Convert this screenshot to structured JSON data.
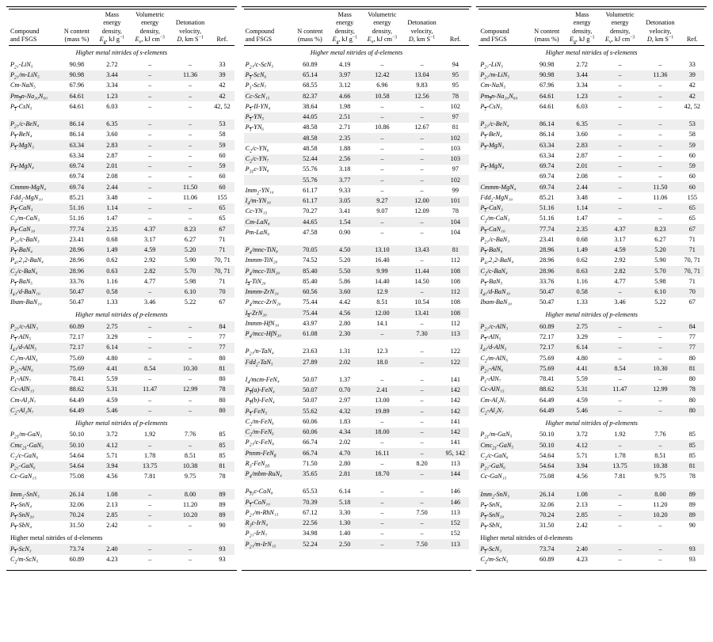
{
  "header": {
    "c1": "Compound and FSGS",
    "c2": "N content (mass %)",
    "c3": "Mass energy density, E_g, kJ g⁻¹",
    "c4": "Volumetric energy density, E_v, kJ cm⁻³",
    "c5": "Detonation velocity, D, km S⁻¹",
    "c6": "Ref."
  },
  "sections": {
    "s_elements": "Higher metal nitrides of s-elements",
    "p_elements": "Higher metal nitrides of p-elements",
    "d_elements": "Higher metal nitrides of d-elements"
  },
  "style": {
    "row_shade": "#eeeeee",
    "fontsize_pt": 8.2,
    "font_family": "Times New Roman"
  },
  "col1": [
    {
      "section": "s_elements"
    },
    {
      "f": "P2₁-LiN₅",
      "n": "90.98",
      "eg": "2.72",
      "ev": "–",
      "d": "–",
      "r": "33"
    },
    {
      "f": "P2₁/m-LiN₅",
      "n": "90.98",
      "eg": "3.44",
      "ev": "–",
      "d": "11.36",
      "r": "39",
      "shade": true
    },
    {
      "f": "Cm-NaN₅",
      "n": "67.96",
      "eg": "3.34",
      "ev": "–",
      "d": "–",
      "r": "42"
    },
    {
      "f": "Pm3̄n-Na₂₀N₆₀",
      "n": "64.61",
      "eg": "1.23",
      "ev": "–",
      "d": "–",
      "r": "42",
      "shade": true
    },
    {
      "f": "P1̄-CsN₅",
      "n": "64.61",
      "eg": "6.03",
      "ev": "–",
      "d": "–",
      "r": "42, 52"
    },
    {
      "spacer": true
    },
    {
      "f": "P2₁/c-BeN₄",
      "n": "86.14",
      "eg": "6.35",
      "ev": "–",
      "d": "–",
      "r": "53",
      "shade": true
    },
    {
      "f": "P1̄-BeN₄",
      "n": "86.14",
      "eg": "3.60",
      "ev": "–",
      "d": "–",
      "r": "58"
    },
    {
      "f": "P1̄-MgN₃",
      "n": "63.34",
      "eg": "2.83",
      "ev": "–",
      "d": "–",
      "r": "59",
      "shade": true
    },
    {
      "f": "",
      "n": "63.34",
      "eg": "2.87",
      "ev": "–",
      "d": "–",
      "r": "60"
    },
    {
      "f": "P1̄-MgN₄",
      "n": "69.74",
      "eg": "2.01",
      "ev": "–",
      "d": "–",
      "r": "59",
      "shade": true
    },
    {
      "f": "",
      "n": "69.74",
      "eg": "2.08",
      "ev": "–",
      "d": "–",
      "r": "60"
    },
    {
      "f": "Cmmm-MgN₄",
      "n": "69.74",
      "eg": "2.44",
      "ev": "–",
      "d": "11.50",
      "r": "60",
      "shade": true
    },
    {
      "f": "Fdd2-MgN₁₀",
      "n": "85.21",
      "eg": "3.48",
      "ev": "–",
      "d": "11.06",
      "r": "155"
    },
    {
      "f": "P1̄-CaN₃",
      "n": "51.16",
      "eg": "1.14",
      "ev": "–",
      "d": "–",
      "r": "65",
      "shade": true
    },
    {
      "f": "C2/m-CaN₃",
      "n": "51.16",
      "eg": "1.47",
      "ev": "–",
      "d": "–",
      "r": "65"
    },
    {
      "f": "P1̄-CaN₁₀",
      "n": "77.74",
      "eg": "2.35",
      "ev": "4.37",
      "d": "8.23",
      "r": "67",
      "shade": true
    },
    {
      "f": "P2₁/c-BaN₃",
      "n": "23.41",
      "eg": "0.68",
      "ev": "3.17",
      "d": "6.27",
      "r": "71"
    },
    {
      "f": "P1̄-BaN₄",
      "n": "28.96",
      "eg": "1.49",
      "ev": "4.59",
      "d": "5.20",
      "r": "71",
      "shade": true
    },
    {
      "f": "P4₁2₁2-BaN₄",
      "n": "28.96",
      "eg": "0.62",
      "ev": "2.92",
      "d": "5.90",
      "r": "70, 71"
    },
    {
      "f": "C2/c-BaN₄",
      "n": "28.96",
      "eg": "0.63",
      "ev": "2.82",
      "d": "5.70",
      "r": "70, 71",
      "shade": true
    },
    {
      "f": "P1̄-BaN₅",
      "n": "33.76",
      "eg": "1.16",
      "ev": "4.77",
      "d": "5.98",
      "r": "71"
    },
    {
      "f": "I4₁/d-BaN₁₀",
      "n": "50.47",
      "eg": "0.58",
      "ev": "–",
      "d": "6.10",
      "r": "70",
      "shade": true
    },
    {
      "f": "Ibam-BaN₁₀",
      "n": "50.47",
      "eg": "1.33",
      "ev": "3.46",
      "d": "5.22",
      "r": "67"
    },
    {
      "section": "p_elements"
    },
    {
      "f": "P2₁/c-AlN₃",
      "n": "60.89",
      "eg": "2.75",
      "ev": "–",
      "d": "–",
      "r": "84",
      "shade": true
    },
    {
      "f": "P1̄-AlN₅",
      "n": "72.17",
      "eg": "3.29",
      "ev": "–",
      "d": "–",
      "r": "77"
    },
    {
      "f": "I4₁/d-AlN₅",
      "n": "72.17",
      "eg": "6.14",
      "ev": "–",
      "d": "–",
      "r": "77",
      "shade": true
    },
    {
      "f": "C2/m-AlN₆",
      "n": "75.69",
      "eg": "4.80",
      "ev": "–",
      "d": "–",
      "r": "80"
    },
    {
      "f": "P2₁-AlN₆",
      "n": "75.69",
      "eg": "4.41",
      "ev": "8.54",
      "d": "10.30",
      "r": "81",
      "shade": true
    },
    {
      "f": "P1-AlN₇",
      "n": "78.41",
      "eg": "5.59",
      "ev": "–",
      "d": "–",
      "r": "80"
    },
    {
      "f": "Cc-AlN₁₅",
      "n": "88.62",
      "eg": "5.31",
      "ev": "11.47",
      "d": "12.99",
      "r": "78",
      "shade": true
    },
    {
      "f": "Cm-Al₂N₇",
      "n": "64.49",
      "eg": "4.59",
      "ev": "–",
      "d": "–",
      "r": "80"
    },
    {
      "f": "C2-Al₂N₇",
      "n": "64.49",
      "eg": "5.46",
      "ev": "–",
      "d": "–",
      "r": "80",
      "shade": true
    },
    {
      "section": "p_elements"
    },
    {
      "f": "P21/m-GaN₅",
      "n": "50.10",
      "eg": "3.72",
      "ev": "1.92",
      "d": "7.76",
      "r": "85"
    },
    {
      "f": "Cmc21-GaN₅",
      "n": "50.10",
      "eg": "4.12",
      "ev": "–",
      "d": "–",
      "r": "85",
      "shade": true
    },
    {
      "f": "C2/c-GaN₆",
      "n": "54.64",
      "eg": "5.71",
      "ev": "1.78",
      "d": "8.51",
      "r": "85"
    },
    {
      "f": "P2₁-GaN₆",
      "n": "54.64",
      "eg": "3.94",
      "ev": "13.75",
      "d": "10.38",
      "r": "81",
      "shade": true
    },
    {
      "f": "Cc-GaN₁₅",
      "n": "75.08",
      "eg": "4.56",
      "ev": "7.81",
      "d": "9.75",
      "r": "78"
    },
    {
      "spacer": true
    },
    {
      "f": "Imm2-SnN₃",
      "n": "26.14",
      "eg": "1.08",
      "ev": "–",
      "d": "8.00",
      "r": "89",
      "shade": true
    },
    {
      "f": "P1̄-SnN₄",
      "n": "32.06",
      "eg": "2.13",
      "ev": "–",
      "d": "11.20",
      "r": "89"
    },
    {
      "f": "P1̄-SnN₂₀",
      "n": "70.24",
      "eg": "2.85",
      "ev": "–",
      "d": "10.20",
      "r": "89",
      "shade": true
    },
    {
      "f": "P1̄-SbN₄",
      "n": "31.50",
      "eg": "2.42",
      "ev": "–",
      "d": "–",
      "r": "90"
    },
    {
      "section_left": "d_elements"
    },
    {
      "f": "P1̄-ScN₃",
      "n": "73.74",
      "eg": "2.40",
      "ev": "–",
      "d": "–",
      "r": "93",
      "shade": true
    },
    {
      "f": "C2/m-ScN₅",
      "n": "60.89",
      "eg": "4.23",
      "ev": "–",
      "d": "–",
      "r": "93"
    }
  ],
  "col2": [
    {
      "section": "d_elements"
    },
    {
      "f": "P2₁/c-ScN₅",
      "n": "60.89",
      "eg": "4.19",
      "ev": "–",
      "d": "–",
      "r": "94"
    },
    {
      "f": "P1̄-ScN₆",
      "n": "65.14",
      "eg": "3.97",
      "ev": "12.42",
      "d": "13.04",
      "r": "95",
      "shade": true
    },
    {
      "f": "P1-ScN₇",
      "n": "68.55",
      "eg": "3.12",
      "ev": "6.96",
      "d": "9.83",
      "r": "95"
    },
    {
      "f": "Cc-ScN₁₅",
      "n": "82.37",
      "eg": "4.66",
      "ev": "10.58",
      "d": "12.56",
      "r": "78",
      "shade": true
    },
    {
      "f": "P1̄-II-YN₄",
      "n": "38.64",
      "eg": "1.98",
      "ev": "–",
      "d": "–",
      "r": "102"
    },
    {
      "f": "P1̄-YN₅",
      "n": "44.05",
      "eg": "2.51",
      "ev": "–",
      "d": "–",
      "r": "97",
      "shade": true
    },
    {
      "f": "P1̄-YN₆",
      "n": "48.58",
      "eg": "2.71",
      "ev": "10.86",
      "d": "12.67",
      "r": "81"
    },
    {
      "f": "",
      "n": "48.58",
      "eg": "2.35",
      "ev": "–",
      "d": "–",
      "r": "102",
      "shade": true
    },
    {
      "f": "C2/c-YN₆",
      "n": "48.58",
      "eg": "1.88",
      "ev": "–",
      "d": "–",
      "r": "103"
    },
    {
      "f": "C2/c-YN₇",
      "n": "52.44",
      "eg": "2.56",
      "ev": "–",
      "d": "–",
      "r": "103",
      "shade": true
    },
    {
      "f": "P31c-YN₈",
      "n": "55.76",
      "eg": "3.18",
      "ev": "–",
      "d": "–",
      "r": "97"
    },
    {
      "f": "",
      "n": "55.76",
      "eg": "3.77",
      "ev": "–",
      "d": "–",
      "r": "102",
      "shade": true
    },
    {
      "f": "Imm2-YN₁₀",
      "n": "61.17",
      "eg": "9.33",
      "ev": "–",
      "d": "–",
      "r": "99"
    },
    {
      "f": "I4/m-YN₁₀",
      "n": "61.17",
      "eg": "3.05",
      "ev": "9.27",
      "d": "12.00",
      "r": "101",
      "shade": true
    },
    {
      "f": "Cc-YN₁₅",
      "n": "70.27",
      "eg": "3.41",
      "ev": "9.07",
      "d": "12.09",
      "r": "78"
    },
    {
      "f": "Cm-LaN₈",
      "n": "44.65",
      "eg": "1.54",
      "ev": "–",
      "d": "–",
      "r": "104",
      "shade": true
    },
    {
      "f": "Pm-LaN₉",
      "n": "47.58",
      "eg": "0.90",
      "ev": "–",
      "d": "–",
      "r": "104"
    },
    {
      "spacer": true
    },
    {
      "f": "P4/mnc-TiN₈",
      "n": "70.05",
      "eg": "4.50",
      "ev": "13.10",
      "d": "13.43",
      "r": "81",
      "shade": true
    },
    {
      "f": "Immm-TiN₂₀",
      "n": "74.52",
      "eg": "5.20",
      "ev": "16.40",
      "d": "–",
      "r": "112"
    },
    {
      "f": "P4/mcc-TiN₂₀",
      "n": "85.40",
      "eg": "5.50",
      "ev": "9.99",
      "d": "11.44",
      "r": "108",
      "shade": true
    },
    {
      "f": "I4̄-TiN₂₀",
      "n": "85.40",
      "eg": "5.86",
      "ev": "14.40",
      "d": "14.50",
      "r": "108"
    },
    {
      "f": "Immm-ZrN₁₀",
      "n": "60.56",
      "eg": "3.60",
      "ev": "12.9",
      "d": "–",
      "r": "112",
      "shade": true
    },
    {
      "f": "P4/mcc-ZrN₂₀",
      "n": "75.44",
      "eg": "4.42",
      "ev": "8.51",
      "d": "10.54",
      "r": "108"
    },
    {
      "f": "I4̄-ZrN₂₀",
      "n": "75.44",
      "eg": "4.56",
      "ev": "12.00",
      "d": "13.41",
      "r": "108",
      "shade": true
    },
    {
      "f": "Immm-HfN₁₀",
      "n": "43.97",
      "eg": "2.80",
      "ev": "14.1",
      "d": "–",
      "r": "112"
    },
    {
      "f": "P4/mcc-HfN₂₀",
      "n": "61.08",
      "eg": "2.30",
      "ev": "–",
      "d": "7.30",
      "r": "113",
      "shade": true
    },
    {
      "spacer": true
    },
    {
      "f": "P2₁/n-TaN₄",
      "n": "23.63",
      "eg": "1.31",
      "ev": "12.3",
      "d": "–",
      "r": "122"
    },
    {
      "f": "Fdd2-TaN₅",
      "n": "27.89",
      "eg": "2.02",
      "ev": "18.0",
      "d": "–",
      "r": "122",
      "shade": true
    },
    {
      "spacer": true
    },
    {
      "f": "I4/mcm-FeN₄",
      "n": "50.07",
      "eg": "1.37",
      "ev": "–",
      "d": "–",
      "r": "141"
    },
    {
      "f": "P1̄(a)-FeN₄",
      "n": "50.07",
      "eg": "0.70",
      "ev": "2.41",
      "d": "–",
      "r": "142",
      "shade": true
    },
    {
      "f": "P1̄(b)-FeN₄",
      "n": "50.07",
      "eg": "2.97",
      "ev": "13.00",
      "d": "–",
      "r": "142"
    },
    {
      "f": "P1̄-FeN₅",
      "n": "55.62",
      "eg": "4.32",
      "ev": "19.89",
      "d": "–",
      "r": "142",
      "shade": true
    },
    {
      "f": "C2/m-FeN₆",
      "n": "60.06",
      "eg": "1.83",
      "ev": "–",
      "d": "–",
      "r": "141"
    },
    {
      "f": "C2/m-FeN₆",
      "n": "60.06",
      "eg": "4.34",
      "ev": "18.00",
      "d": "–",
      "r": "142",
      "shade": true
    },
    {
      "f": "P2₁/c-FeN₈",
      "n": "66.74",
      "eg": "2.02",
      "ev": "–",
      "d": "–",
      "r": "141"
    },
    {
      "f": "Pnnm-FeN8",
      "n": "66.74",
      "eg": "4.70",
      "ev": "16.11",
      "d": "–",
      "r": "95, 142",
      "shade": true
    },
    {
      "f": "R3-FeN10",
      "n": "71.50",
      "eg": "2.80",
      "ev": "–",
      "d": "8.20",
      "r": "113"
    },
    {
      "f": "P4/mbm-RuN₄",
      "n": "35.65",
      "eg": "2.81",
      "ev": "18.70",
      "d": "–",
      "r": "144",
      "shade": true
    },
    {
      "spacer": true
    },
    {
      "f": "P3̄1c-CoN₈",
      "n": "65.53",
      "eg": "6.14",
      "ev": "–",
      "d": "–",
      "r": "146"
    },
    {
      "f": "P1̄-CoN₁₀",
      "n": "70.39",
      "eg": "5.18",
      "ev": "–",
      "d": "–",
      "r": "146",
      "shade": true
    },
    {
      "f": "P2₁/m-RhN₁₅",
      "n": "67.12",
      "eg": "3.30",
      "ev": "–",
      "d": "7.50",
      "r": "113"
    },
    {
      "f": "R3c-IrN₄",
      "n": "22.56",
      "eg": "1.30",
      "ev": "–",
      "d": "–",
      "r": "152",
      "shade": true
    },
    {
      "f": "P2₁-IrN₇",
      "n": "34.98",
      "eg": "1.40",
      "ev": "–",
      "d": "–",
      "r": "152"
    },
    {
      "f": "P2₁/m-IrN₁₅",
      "n": "52.24",
      "eg": "2.50",
      "ev": "–",
      "d": "7.50",
      "r": "113",
      "shade": true
    }
  ],
  "col3_same_as_col1": true
}
